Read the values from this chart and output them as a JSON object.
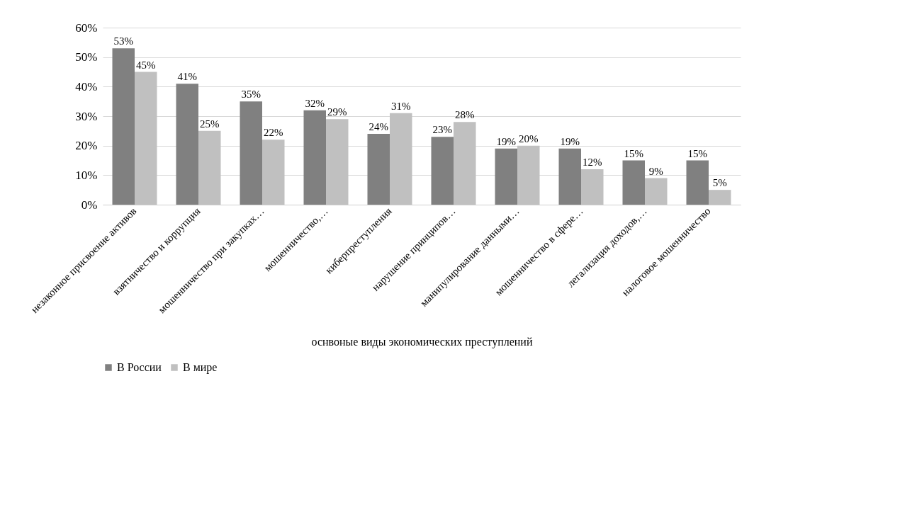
{
  "chart_data": {
    "type": "bar",
    "xlabel": "оснвоные виды экономических преступлений",
    "categories": [
      "незаконное присвоение активов",
      "взятничество и коррупция",
      "мошенничество при закупках…",
      "мошенничество,…",
      "киберпреступления",
      "нарушение принципов…",
      "манипулирование данными…",
      "мошенничество в сфере…",
      "легализация доходов,…",
      "налоговое мошенничество"
    ],
    "series": [
      {
        "name": "В России",
        "color": "#808080",
        "values": [
          53,
          41,
          35,
          32,
          24,
          23,
          19,
          19,
          15,
          15
        ],
        "value_labels": [
          "53%",
          "41%",
          "35%",
          "32%",
          "24%",
          "23%",
          "19%",
          "19%",
          "15%",
          "15%"
        ]
      },
      {
        "name": "В мире",
        "color": "#c0c0c0",
        "values": [
          45,
          25,
          22,
          29,
          31,
          28,
          20,
          12,
          9,
          5
        ],
        "value_labels": [
          "45%",
          "25%",
          "22%",
          "29%",
          "31%",
          "28%",
          "20%",
          "12%",
          "9%",
          "5%"
        ]
      }
    ],
    "ylim": [
      0,
      60
    ],
    "yticks": [
      {
        "value": 0,
        "label": "0%"
      },
      {
        "value": 10,
        "label": "10%"
      },
      {
        "value": 20,
        "label": "20%"
      },
      {
        "value": 30,
        "label": "30%"
      },
      {
        "value": 40,
        "label": "40%"
      },
      {
        "value": 50,
        "label": "50%"
      },
      {
        "value": 60,
        "label": "60%"
      }
    ],
    "grid": "y",
    "legend": "bottom"
  }
}
